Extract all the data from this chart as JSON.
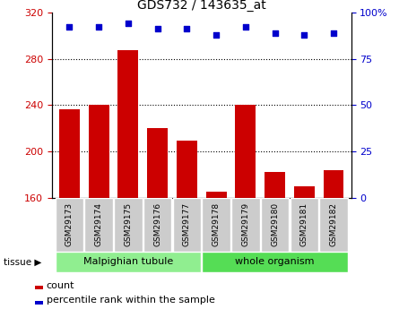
{
  "title": "GDS732 / 143635_at",
  "samples": [
    "GSM29173",
    "GSM29174",
    "GSM29175",
    "GSM29176",
    "GSM29177",
    "GSM29178",
    "GSM29179",
    "GSM29180",
    "GSM29181",
    "GSM29182"
  ],
  "counts": [
    236,
    240,
    287,
    220,
    209,
    165,
    240,
    182,
    170,
    184
  ],
  "percentiles": [
    92,
    92,
    94,
    91,
    91,
    88,
    92,
    89,
    88,
    89
  ],
  "ylim_left": [
    160,
    320
  ],
  "ylim_right": [
    0,
    100
  ],
  "yticks_left": [
    160,
    200,
    240,
    280,
    320
  ],
  "yticks_right": [
    0,
    25,
    50,
    75,
    100
  ],
  "bar_color": "#cc0000",
  "dot_color": "#0000cc",
  "tissue_groups": [
    {
      "label": "Malpighian tubule",
      "start": 0,
      "end": 5,
      "color": "#90ee90"
    },
    {
      "label": "whole organism",
      "start": 5,
      "end": 10,
      "color": "#55dd55"
    }
  ],
  "legend_count_label": "count",
  "legend_pct_label": "percentile rank within the sample",
  "tissue_label": "tissue",
  "figsize": [
    4.45,
    3.45
  ],
  "dpi": 100
}
